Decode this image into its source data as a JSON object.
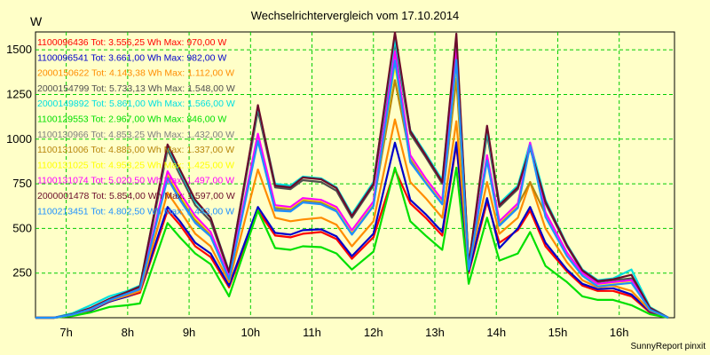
{
  "chart_data": {
    "type": "line",
    "title": "Wechselrichtervergleich vom 17.10.2014",
    "ylabel": "W",
    "footer": "SunnyReport pinxit",
    "ylim": [
      0,
      1600
    ],
    "xlim": [
      6.5,
      16.9
    ],
    "y_ticks": [
      250,
      500,
      750,
      1000,
      1250,
      1500
    ],
    "x_ticks": [
      7,
      8,
      9,
      10,
      11,
      12,
      13,
      14,
      15,
      16
    ],
    "x_tick_labels": [
      "7h",
      "8h",
      "9h",
      "10h",
      "11h",
      "12h",
      "13h",
      "14h",
      "15h",
      "16h"
    ],
    "grid": true,
    "legend_position": "top-left",
    "x": [
      6.5,
      6.8,
      7.1,
      7.4,
      7.7,
      8.0,
      8.2,
      8.65,
      8.85,
      9.1,
      9.35,
      9.65,
      10.12,
      10.4,
      10.65,
      10.85,
      11.15,
      11.4,
      11.65,
      12.0,
      12.35,
      12.6,
      12.85,
      13.12,
      13.35,
      13.55,
      13.85,
      14.05,
      14.35,
      14.55,
      14.8,
      15.15,
      15.4,
      15.65,
      15.9,
      16.2,
      16.5,
      16.8
    ],
    "series": [
      {
        "name": "1100096436",
        "label": "1100096436 Tot: 3.556,25 Wh Max: 970,00 W",
        "color": "#ff0000",
        "values": [
          0,
          0,
          15,
          40,
          90,
          120,
          140,
          600,
          520,
          400,
          340,
          170,
          600,
          460,
          450,
          470,
          480,
          440,
          330,
          450,
          830,
          640,
          560,
          460,
          970,
          250,
          650,
          420,
          490,
          600,
          400,
          260,
          180,
          150,
          150,
          120,
          30,
          0
        ]
      },
      {
        "name": "1100096541",
        "label": "1100096541 Tot: 3.661,00 Wh Max: 982,00 W",
        "color": "#0000cc",
        "values": [
          0,
          0,
          15,
          40,
          90,
          120,
          150,
          620,
          540,
          420,
          360,
          180,
          620,
          475,
          465,
          490,
          495,
          455,
          345,
          470,
          980,
          660,
          580,
          480,
          982,
          260,
          670,
          390,
          500,
          620,
          420,
          270,
          190,
          160,
          165,
          130,
          35,
          0
        ]
      },
      {
        "name": "2000150622",
        "label": "2000150622 Tot: 4.143,38 Wh Max: 1.112,00 W",
        "color": "#ff8c00",
        "values": [
          0,
          0,
          15,
          45,
          95,
          125,
          150,
          700,
          600,
          470,
          400,
          200,
          830,
          560,
          540,
          550,
          560,
          520,
          400,
          540,
          1110,
          760,
          670,
          560,
          1100,
          280,
          760,
          470,
          560,
          760,
          500,
          310,
          210,
          170,
          180,
          150,
          40,
          0
        ]
      },
      {
        "name": "2000154799",
        "label": "2000154799 Tot: 5.733,13 Wh Max: 1.548,00 W",
        "color": "#505050",
        "values": [
          0,
          0,
          20,
          50,
          100,
          140,
          170,
          940,
          800,
          630,
          540,
          250,
          1160,
          730,
          720,
          770,
          760,
          710,
          560,
          740,
          1540,
          1030,
          900,
          750,
          1548,
          290,
          1030,
          620,
          720,
          960,
          640,
          400,
          260,
          200,
          210,
          220,
          50,
          0
        ]
      },
      {
        "name": "2000149892",
        "label": "2000149892 Tot: 5.861,00 Wh Max: 1.566,00 W",
        "color": "#00e0e0",
        "values": [
          0,
          0,
          25,
          70,
          120,
          150,
          180,
          960,
          820,
          650,
          560,
          260,
          1180,
          750,
          740,
          790,
          780,
          730,
          580,
          760,
          1560,
          1050,
          920,
          770,
          1560,
          290,
          1050,
          640,
          740,
          980,
          660,
          410,
          270,
          210,
          220,
          270,
          60,
          0
        ]
      },
      {
        "name": "1100129553",
        "label": "1100129553 Tot: 2.967,00 Wh Max: 846,00 W",
        "color": "#00e000",
        "values": [
          0,
          0,
          10,
          30,
          60,
          70,
          80,
          530,
          450,
          360,
          300,
          120,
          600,
          390,
          380,
          400,
          395,
          360,
          270,
          370,
          840,
          540,
          460,
          380,
          840,
          190,
          560,
          320,
          360,
          480,
          290,
          200,
          120,
          100,
          100,
          70,
          20,
          0
        ]
      },
      {
        "name": "1100130966",
        "label": "1100130966 Tot: 4.853,25 Wh Max: 1.432,00 W",
        "color": "#808080",
        "values": [
          0,
          0,
          18,
          48,
          98,
          135,
          160,
          790,
          670,
          540,
          460,
          220,
          1000,
          610,
          600,
          650,
          640,
          600,
          470,
          630,
          1420,
          880,
          760,
          640,
          1420,
          270,
          890,
          520,
          620,
          970,
          570,
          350,
          240,
          180,
          190,
          200,
          45,
          0
        ]
      },
      {
        "name": "1100131006",
        "label": "1100131006 Tot: 4.885,00 Wh Max: 1.337,00 W",
        "color": "#b8860b",
        "values": [
          0,
          0,
          18,
          48,
          98,
          135,
          160,
          800,
          680,
          550,
          470,
          220,
          1010,
          620,
          610,
          660,
          650,
          610,
          480,
          640,
          1330,
          900,
          770,
          650,
          1337,
          275,
          900,
          530,
          630,
          760,
          580,
          360,
          245,
          185,
          195,
          205,
          45,
          0
        ]
      },
      {
        "name": "1100131025",
        "label": "1100131025 Tot: 4.953,25 Wh Max: 1.425,00 W",
        "color": "#ffff00",
        "values": [
          0,
          0,
          18,
          48,
          98,
          135,
          160,
          810,
          690,
          560,
          475,
          225,
          1020,
          625,
          615,
          665,
          655,
          615,
          485,
          645,
          1410,
          905,
          775,
          655,
          1425,
          275,
          905,
          535,
          635,
          975,
          585,
          360,
          245,
          185,
          195,
          205,
          45,
          0
        ]
      },
      {
        "name": "1100131074",
        "label": "1100131074 Tot: 5.020,50 Wh Max: 1.497,00 W",
        "color": "#ff00ff",
        "values": [
          0,
          0,
          18,
          48,
          98,
          135,
          160,
          820,
          700,
          570,
          480,
          230,
          1030,
          630,
          620,
          670,
          660,
          620,
          490,
          650,
          1490,
          910,
          780,
          660,
          1497,
          280,
          910,
          540,
          640,
          980,
          590,
          365,
          250,
          190,
          200,
          210,
          45,
          0
        ]
      },
      {
        "name": "2000001478",
        "label": "2000001478 Tot: 5.854,00 Wh Max: 1.597,00 W",
        "color": "#6b0b2b",
        "values": [
          0,
          0,
          20,
          55,
          105,
          145,
          175,
          970,
          830,
          660,
          560,
          255,
          1190,
          740,
          730,
          785,
          775,
          725,
          570,
          750,
          1597,
          1045,
          910,
          760,
          1590,
          290,
          1075,
          630,
          730,
          950,
          650,
          405,
          265,
          205,
          215,
          240,
          55,
          0
        ]
      },
      {
        "name": "1100213451",
        "label": "1100213451 Tot: 4.802,50 Wh Max: 1.443,00 W",
        "color": "#1e90ff",
        "values": [
          0,
          0,
          18,
          48,
          98,
          135,
          160,
          780,
          660,
          530,
          455,
          215,
          990,
          600,
          595,
          645,
          635,
          595,
          465,
          625,
          1440,
          870,
          755,
          635,
          1443,
          270,
          880,
          515,
          615,
          965,
          565,
          345,
          235,
          175,
          185,
          195,
          45,
          0
        ]
      }
    ]
  }
}
